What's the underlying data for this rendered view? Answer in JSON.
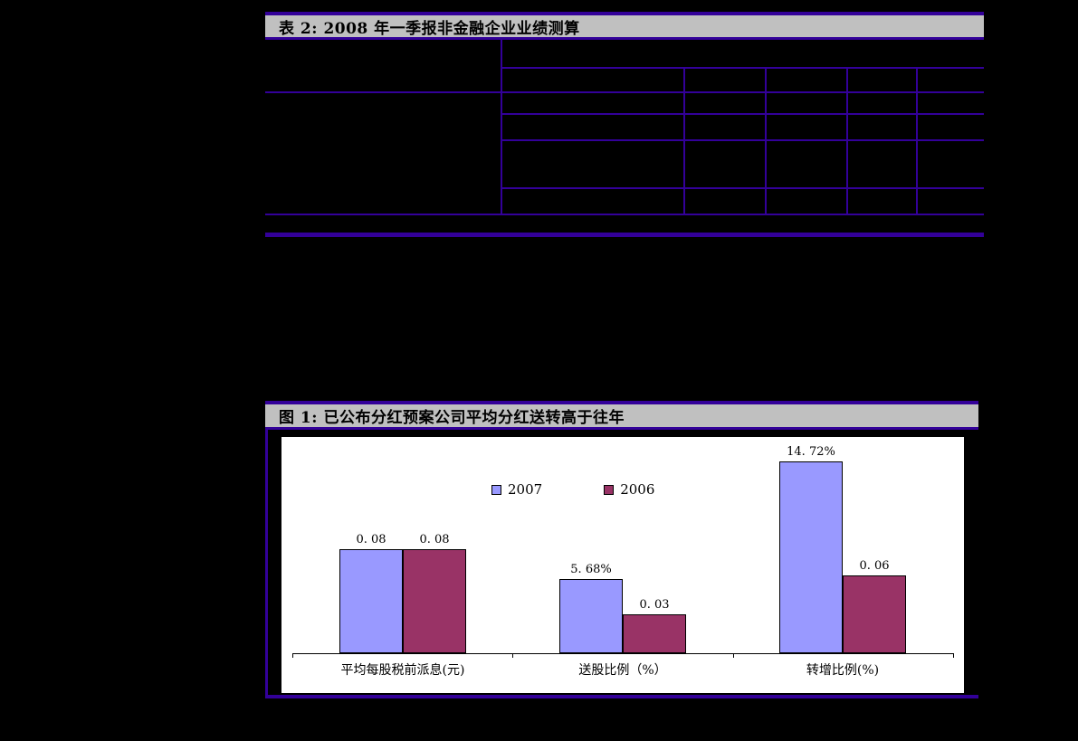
{
  "page": {
    "background_color": "#000000",
    "accent_color": "#330099",
    "header_bg_color": "#c0c0c0"
  },
  "table2": {
    "title": "表 2: 2008 年一季报非金融企业业绩测算",
    "cells": []
  },
  "figure1": {
    "title": "图 1: 已公布分红预案公司平均分红送转高于往年"
  },
  "chart_data": {
    "type": "bar",
    "title": "已公布分红预案公司平均分红送转高于往年",
    "categories": [
      "平均每股税前派息(元)",
      "送股比例（%）",
      "转增比例(%)"
    ],
    "series": [
      {
        "name": "2007",
        "color": "#9999FF",
        "values": [
          0.08,
          0.0568,
          0.1472
        ],
        "labels": [
          "0. 08",
          "5. 68%",
          "14. 72%"
        ]
      },
      {
        "name": "2006",
        "color": "#993366",
        "values": [
          0.08,
          0.03,
          0.06
        ],
        "labels": [
          "0. 08",
          "0. 03",
          "0. 06"
        ]
      }
    ],
    "ylim": [
      0,
      0.16
    ],
    "grid": false,
    "legend_position": "top-center",
    "plot_background": "#ffffff"
  }
}
